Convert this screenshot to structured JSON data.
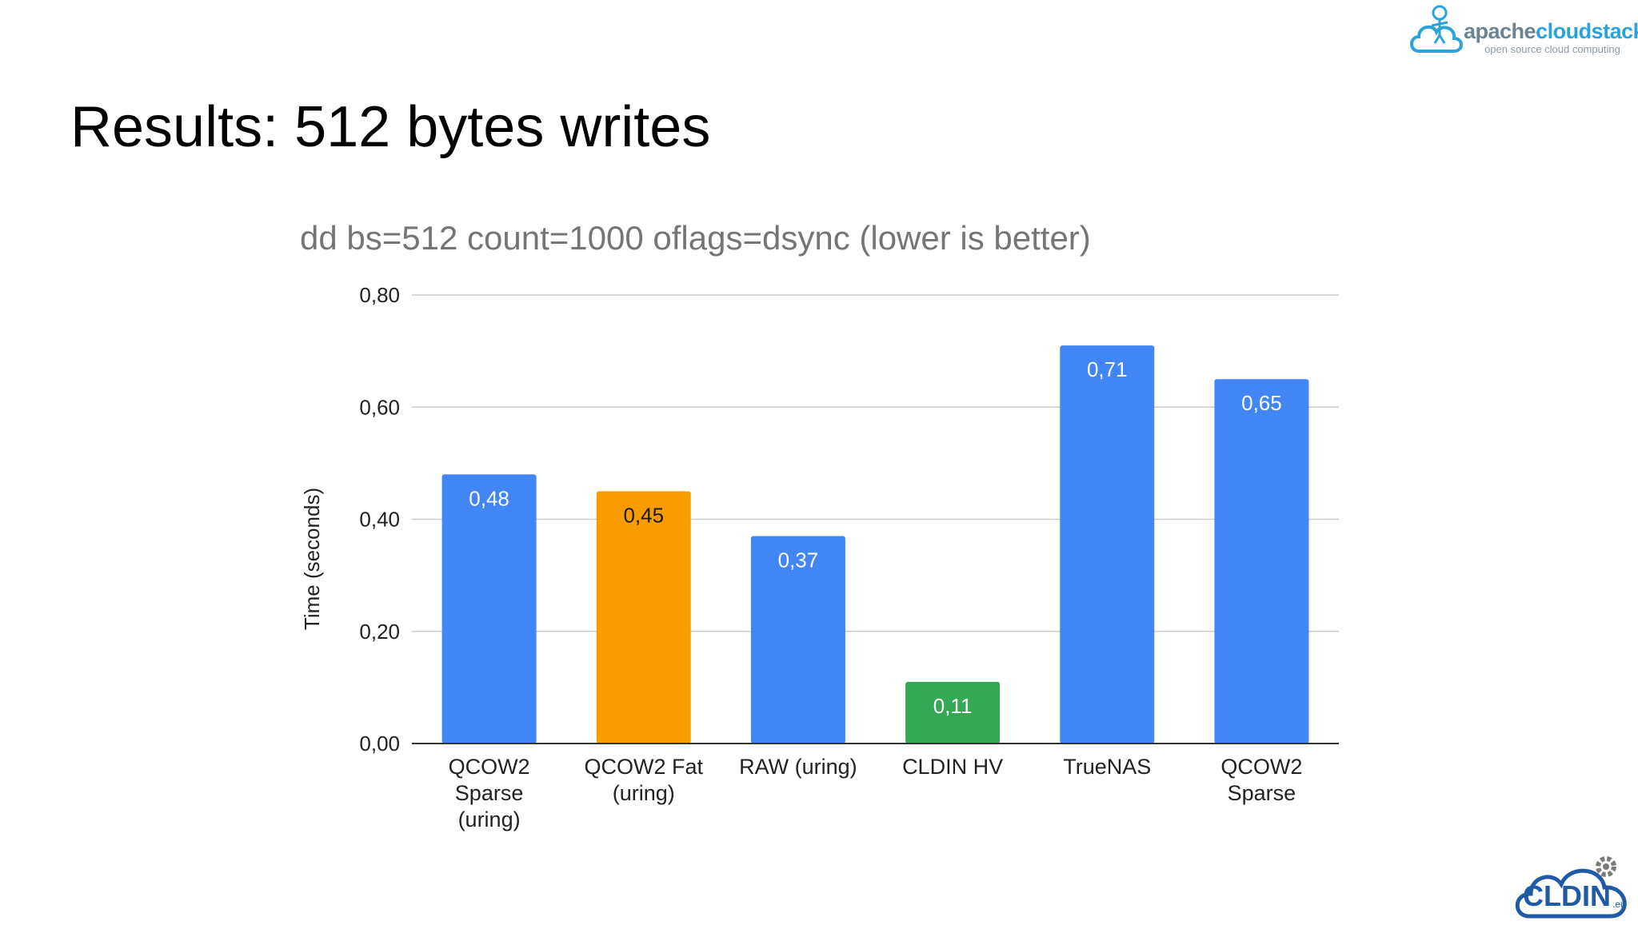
{
  "slide": {
    "title": "Results: 512 bytes writes"
  },
  "logos": {
    "apache": {
      "brand_plain": "apache",
      "brand_bold": "cloudstack",
      "tagline": "open source cloud computing"
    },
    "cldin": {
      "text": "CLDIN",
      "suffix": ".eu"
    }
  },
  "chart_data": {
    "type": "bar",
    "title": "dd bs=512 count=1000 oflags=dsync (lower is better)",
    "xlabel": "",
    "ylabel": "Time (seconds)",
    "ylim": [
      0,
      0.8
    ],
    "yticks": [
      "0,00",
      "0,20",
      "0,40",
      "0,60",
      "0,80"
    ],
    "ytick_values": [
      0,
      0.2,
      0.4,
      0.6,
      0.8
    ],
    "grid": true,
    "categories": [
      [
        "QCOW2",
        "Sparse",
        "(uring)"
      ],
      [
        "QCOW2 Fat",
        "(uring)"
      ],
      [
        "RAW (uring)"
      ],
      [
        "CLDIN HV"
      ],
      [
        "TrueNAS"
      ],
      [
        "QCOW2",
        "Sparse"
      ]
    ],
    "values": [
      0.48,
      0.45,
      0.37,
      0.11,
      0.71,
      0.65
    ],
    "data_labels": [
      "0,48",
      "0,45",
      "0,37",
      "0,11",
      "0,71",
      "0,65"
    ],
    "colors": [
      "#4285f4",
      "#f99c00",
      "#4285f4",
      "#34a853",
      "#4285f4",
      "#4285f4"
    ],
    "label_colors": [
      "#ffffff",
      "#1a1a1a",
      "#ffffff",
      "#ffffff",
      "#ffffff",
      "#ffffff"
    ]
  }
}
